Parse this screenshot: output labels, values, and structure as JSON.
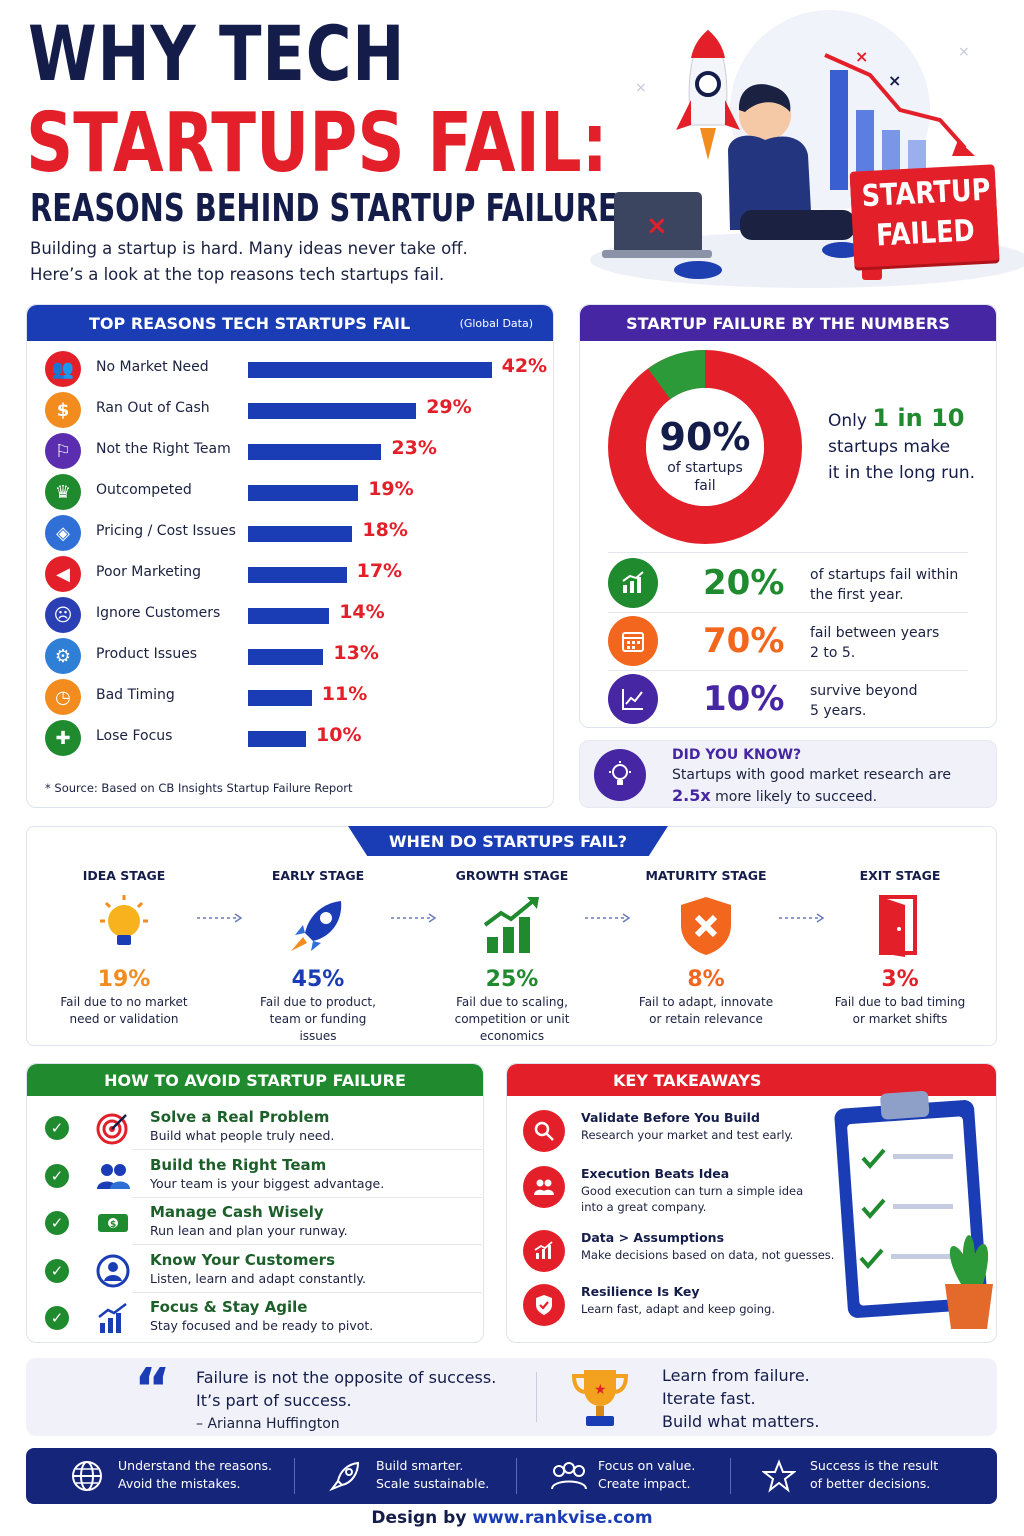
{
  "header": {
    "title_line1": "WHY TECH",
    "title_line2": "STARTUPS FAIL:",
    "subtitle": "REASONS BEHIND STARTUP FAILURE",
    "intro_line1": "Building a startup is hard. Many ideas never take off.",
    "intro_line2": "Here’s a look at the top reasons tech startups fail.",
    "badge_line1": "STARTUP",
    "badge_line2": "FAILED"
  },
  "reasons": {
    "title": "TOP REASONS TECH STARTUPS FAIL",
    "tag": "(Global Data)",
    "source": "* Source: Based on CB Insights Startup Failure Report",
    "items": [
      {
        "label": "No Market Need",
        "pct": "42%",
        "value": 42,
        "color": "#e3202a",
        "icon": "users-icon"
      },
      {
        "label": "Ran Out of Cash",
        "pct": "29%",
        "value": 29,
        "color": "#f28c1e",
        "icon": "dollar-icon"
      },
      {
        "label": "Not the Right Team",
        "pct": "23%",
        "value": 23,
        "color": "#5b2eb0",
        "icon": "team-icon"
      },
      {
        "label": "Outcompeted",
        "pct": "19%",
        "value": 19,
        "color": "#1f8a2e",
        "icon": "trophy-icon"
      },
      {
        "label": "Pricing / Cost Issues",
        "pct": "18%",
        "value": 18,
        "color": "#2f6fd6",
        "icon": "tag-icon"
      },
      {
        "label": "Poor Marketing",
        "pct": "17%",
        "value": 17,
        "color": "#e3202a",
        "icon": "megaphone-icon"
      },
      {
        "label": "Ignore Customers",
        "pct": "14%",
        "value": 14,
        "color": "#2a3fb3",
        "icon": "sad-face-icon"
      },
      {
        "label": "Product Issues",
        "pct": "13%",
        "value": 13,
        "color": "#2f7fd6",
        "icon": "gear-icon"
      },
      {
        "label": "Bad Timing",
        "pct": "11%",
        "value": 11,
        "color": "#f28c1e",
        "icon": "clock-icon"
      },
      {
        "label": "Lose Focus",
        "pct": "10%",
        "value": 10,
        "color": "#1f8a2e",
        "icon": "puzzle-icon"
      }
    ]
  },
  "numbers": {
    "title": "STARTUP FAILURE BY THE NUMBERS",
    "donut_pct": "90%",
    "donut_label1": "of startups",
    "donut_label2": "fail",
    "donut_fail_fraction": 0.9,
    "only_text": "Only",
    "one_in_ten": "1 in 10",
    "only_line2": "startups make",
    "only_line3": "it in the long run.",
    "stats": [
      {
        "num": "20%",
        "line1": "of startups fail within",
        "line2": "the first year.",
        "color": "#1f8a2e",
        "icon": "growth-chart-icon"
      },
      {
        "num": "70%",
        "line1": "fail between years",
        "line2": "2 to 5.",
        "color": "#f2661e",
        "icon": "calendar-icon"
      },
      {
        "num": "10%",
        "line1": "survive beyond",
        "line2": "5 years.",
        "color": "#4626a3",
        "icon": "line-chart-icon"
      }
    ]
  },
  "did_you_know": {
    "title": "DID YOU KNOW?",
    "line1": "Startups with good market research are",
    "highlight": "2.5x",
    "line2": "more likely to succeed."
  },
  "stages": {
    "title": "WHEN DO STARTUPS FAIL?",
    "items": [
      {
        "name": "IDEA STAGE",
        "pct": "19%",
        "desc": "Fail due to no market need or validation",
        "color": "#f28c1e",
        "icon": "lightbulb-icon"
      },
      {
        "name": "EARLY STAGE",
        "pct": "45%",
        "desc": "Fail due to product, team or funding issues",
        "color": "#1a3db5",
        "icon": "rocket-icon"
      },
      {
        "name": "GROWTH STAGE",
        "pct": "25%",
        "desc": "Fail due to scaling, competition or unit economics",
        "color": "#1f8a2e",
        "icon": "bar-growth-icon"
      },
      {
        "name": "MATURITY STAGE",
        "pct": "8%",
        "desc": "Fail to adapt, innovate or retain relevance",
        "color": "#f2661e",
        "icon": "shield-x-icon"
      },
      {
        "name": "EXIT STAGE",
        "pct": "3%",
        "desc": "Fail due to bad timing or market shifts",
        "color": "#e3202a",
        "icon": "exit-door-icon"
      }
    ]
  },
  "avoid": {
    "title": "HOW TO AVOID STARTUP FAILURE",
    "items": [
      {
        "title": "Solve a Real Problem",
        "desc": "Build what people truly need.",
        "icon": "target-icon"
      },
      {
        "title": "Build the Right Team",
        "desc": "Your team is your biggest advantage.",
        "icon": "team-icon"
      },
      {
        "title": "Manage Cash Wisely",
        "desc": "Run lean and plan your runway.",
        "icon": "cash-icon"
      },
      {
        "title": "Know Your Customers",
        "desc": "Listen, learn and adapt constantly.",
        "icon": "customer-icon"
      },
      {
        "title": "Focus & Stay Agile",
        "desc": "Stay focused and be ready to pivot.",
        "icon": "growth-chart-icon"
      }
    ]
  },
  "takeaways": {
    "title": "KEY TAKEAWAYS",
    "items": [
      {
        "title": "Validate Before You Build",
        "desc": "Research your market and test early.",
        "icon": "search-icon"
      },
      {
        "title": "Execution Beats Idea",
        "desc": "Good execution can turn a simple idea into a great company.",
        "icon": "users-icon"
      },
      {
        "title": "Data > Assumptions",
        "desc": "Make decisions based on data, not guesses.",
        "icon": "data-chart-icon"
      },
      {
        "title": "Resilience Is Key",
        "desc": "Learn fast, adapt and keep going.",
        "icon": "shield-check-icon"
      }
    ]
  },
  "quote": {
    "line1": "Failure is not the opposite of success.",
    "line2": "It’s part of success.",
    "author": "– Arianna Huffington",
    "right1": "Learn from failure.",
    "right2": "Iterate fast.",
    "right3": "Build what matters."
  },
  "footer": {
    "items": [
      {
        "line1": "Understand the reasons.",
        "line2": "Avoid the mistakes.",
        "icon": "globe-icon"
      },
      {
        "line1": "Build smarter.",
        "line2": "Scale sustainable.",
        "icon": "rocket-icon"
      },
      {
        "line1": "Focus on value.",
        "line2": "Create impact.",
        "icon": "people-icon"
      },
      {
        "line1": "Success is the result",
        "line2": "of better decisions.",
        "icon": "star-icon"
      }
    ],
    "design_prefix": "Design by",
    "design_link": "www.rankvise.com"
  },
  "colors": {
    "navy": "#141c4a",
    "red": "#e3202a",
    "blue": "#1a3db5",
    "purple": "#4626a3",
    "green": "#1f8a2e",
    "orange": "#f2661e"
  }
}
